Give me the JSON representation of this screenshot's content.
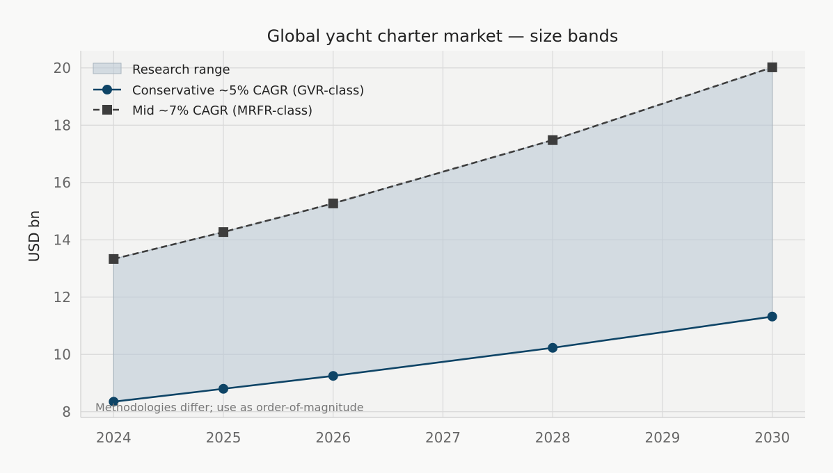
{
  "chart_data": {
    "type": "line",
    "title": "Global yacht charter market — size bands",
    "xlabel": "",
    "ylabel": "USD bn",
    "x": [
      2024,
      2025,
      2026,
      2028,
      2030
    ],
    "xticks": [
      "2024",
      "2025",
      "2026",
      "2027",
      "2028",
      "2029",
      "2030"
    ],
    "xlim": [
      2023.7,
      2030.3
    ],
    "yticks": [
      "8",
      "10",
      "12",
      "14",
      "16",
      "18",
      "20"
    ],
    "ylim": [
      7.8,
      20.6
    ],
    "grid": true,
    "legend_position": "top-left",
    "band": {
      "name": "Research range",
      "color": "#b8c7d3"
    },
    "series": [
      {
        "name": "Conservative ~5% CAGR (GVR-class)",
        "values": [
          8.35,
          8.8,
          9.25,
          10.23,
          11.32
        ],
        "color": "#0e4466",
        "style": "solid",
        "marker": "circle"
      },
      {
        "name": "Mid ~7% CAGR (MRFR-class)",
        "values": [
          13.33,
          14.27,
          15.27,
          17.48,
          20.02
        ],
        "color": "#3d3d3d",
        "style": "dashed",
        "marker": "square"
      }
    ],
    "annotation": "Methodologies differ; use as order-of-magnitude"
  }
}
